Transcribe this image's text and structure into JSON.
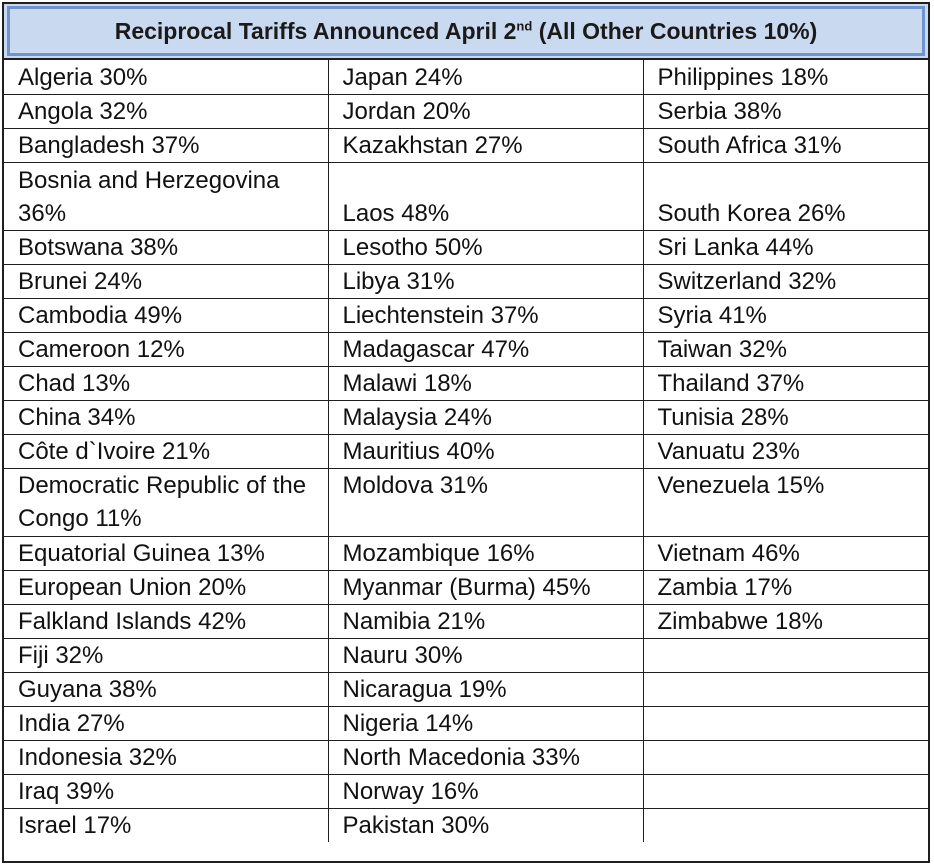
{
  "title": {
    "before": "Reciprocal Tariffs Announced April 2",
    "sup": "nd",
    "after": " (All Other Countries 10%)"
  },
  "columns": {
    "col1": [
      "Algeria  30%",
      "Angola  32%",
      "Bangladesh  37%",
      "Bosnia and Herzegovina 36%",
      "Botswana  38%",
      "Brunei  24%",
      "Cambodia  49%",
      "Cameroon  12%",
      "Chad  13%",
      "China  34%",
      "Côte d`Ivoire  21%",
      "Democratic Republic of the Congo  11%",
      "Equatorial Guinea  13%",
      "European Union  20%",
      "Falkland Islands  42%",
      "Fiji  32%",
      "Guyana  38%",
      "India  27%",
      "Indonesia  32%",
      "Iraq  39%",
      "Israel  17%"
    ],
    "col2": [
      "Japan  24%",
      "Jordan  20%",
      "Kazakhstan  27%",
      "Laos  48%",
      "Lesotho  50%",
      "Libya  31%",
      "Liechtenstein  37%",
      "Madagascar  47%",
      "Malawi  18%",
      "Malaysia  24%",
      "Mauritius  40%",
      "Moldova  31%",
      "Mozambique  16%",
      "Myanmar (Burma) 45%",
      "Namibia  21%",
      "Nauru  30%",
      "Nicaragua  19%",
      "Nigeria  14%",
      "North Macedonia  33%",
      "Norway  16%",
      "Pakistan  30%"
    ],
    "col3": [
      "Philippines  18%",
      "Serbia  38%",
      "South Africa  31%",
      "South Korea  26%",
      "Sri Lanka  44%",
      "Switzerland  32%",
      "Syria  41%",
      "Taiwan  32%",
      "Thailand  37%",
      "Tunisia  28%",
      "Vanuatu  23%",
      "Venezuela  15%",
      "Vietnam  46%",
      "Zambia  17%",
      "Zimbabwe  18%",
      "",
      "",
      "",
      "",
      "",
      ""
    ]
  }
}
